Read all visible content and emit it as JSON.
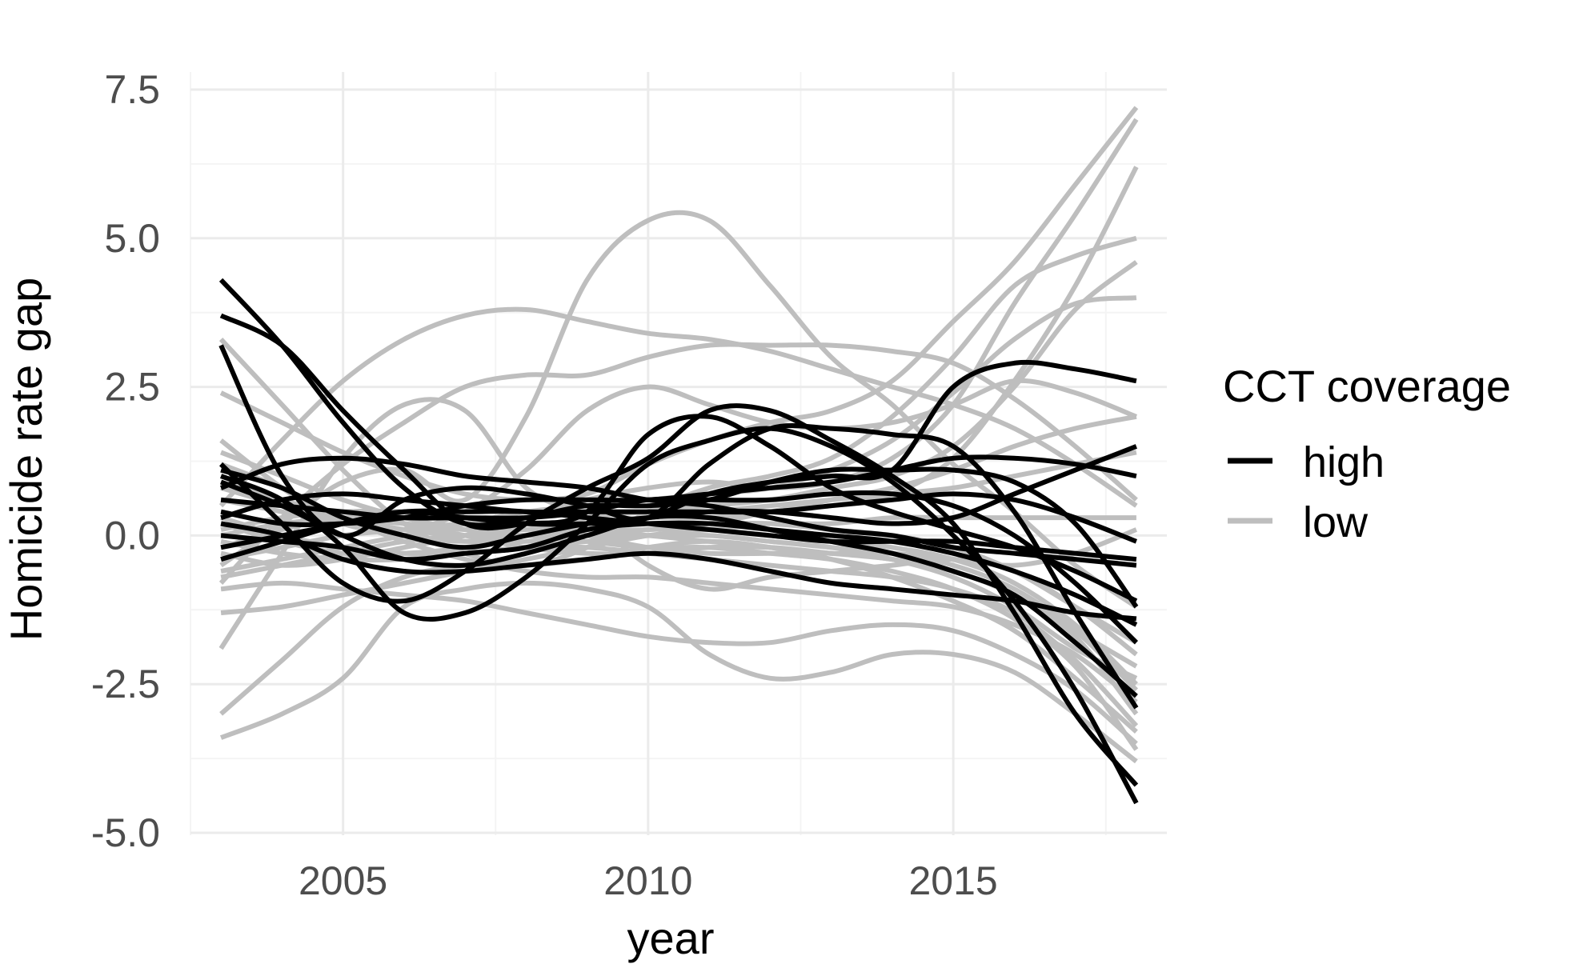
{
  "chart_data": {
    "type": "line",
    "xlabel": "year",
    "ylabel": "Homicide rate gap",
    "xlim": [
      2002.5,
      2018.5
    ],
    "ylim": [
      -5.0,
      7.8
    ],
    "x_ticks": [
      2005,
      2010,
      2015
    ],
    "x_tick_labels": [
      "2005",
      "2010",
      "2015"
    ],
    "y_ticks": [
      -5.0,
      -2.5,
      0.0,
      2.5,
      5.0,
      7.5
    ],
    "y_tick_labels": [
      "-5.0",
      "-2.5",
      "0.0",
      "2.5",
      "5.0",
      "7.5"
    ],
    "grid": true,
    "legend": {
      "title": "CCT coverage",
      "position": "right",
      "entries": [
        {
          "label": "high",
          "color": "#000000"
        },
        {
          "label": "low",
          "color": "#bebebe"
        }
      ]
    },
    "colors": {
      "high": "#000000",
      "low": "#bebebe",
      "grid_major": "#ebebeb",
      "grid_minor": "#f4f4f4",
      "text": "#4d4d4d"
    },
    "x": [
      2003,
      2004,
      2005,
      2006,
      2007,
      2008,
      2009,
      2010,
      2011,
      2012,
      2013,
      2014,
      2015,
      2016,
      2017,
      2018
    ],
    "series": [
      {
        "group": "low",
        "values": [
          -1.9,
          -0.3,
          1.3,
          2.2,
          2.1,
          0.8,
          0.3,
          -0.5,
          -0.9,
          -0.7,
          -0.6,
          -0.5,
          -0.4,
          -0.6,
          -1.2,
          -2.0
        ]
      },
      {
        "group": "low",
        "values": [
          -0.5,
          0.2,
          0.9,
          1.1,
          0.6,
          2.0,
          4.3,
          5.3,
          5.3,
          4.2,
          3.0,
          2.2,
          1.2,
          0.4,
          -0.5,
          -1.2
        ]
      },
      {
        "group": "low",
        "values": [
          0.5,
          1.6,
          2.6,
          3.3,
          3.7,
          3.8,
          3.6,
          3.4,
          3.3,
          3.1,
          2.8,
          2.5,
          2.2,
          1.8,
          1.2,
          0.5
        ]
      },
      {
        "group": "low",
        "values": [
          -0.8,
          0.3,
          1.2,
          1.9,
          2.5,
          2.7,
          2.7,
          3.0,
          3.2,
          3.2,
          3.2,
          3.1,
          2.9,
          2.3,
          1.5,
          0.6
        ]
      },
      {
        "group": "low",
        "values": [
          1.6,
          0.8,
          0.2,
          0.1,
          0.4,
          1.1,
          2.1,
          2.5,
          2.2,
          1.9,
          1.8,
          1.9,
          2.2,
          2.6,
          2.4,
          2.0
        ]
      },
      {
        "group": "low",
        "values": [
          2.4,
          1.9,
          1.4,
          1.0,
          0.7,
          0.6,
          0.7,
          1.2,
          1.6,
          1.9,
          2.1,
          2.6,
          3.6,
          4.6,
          5.9,
          7.2
        ]
      },
      {
        "group": "low",
        "values": [
          3.3,
          2.2,
          1.1,
          0.2,
          -0.3,
          -0.5,
          -0.2,
          0.4,
          0.8,
          1.0,
          1.3,
          2.0,
          3.0,
          4.2,
          4.7,
          5.0
        ]
      },
      {
        "group": "low",
        "values": [
          -0.3,
          -0.5,
          -0.4,
          -0.2,
          0.0,
          0.3,
          0.6,
          0.8,
          0.9,
          0.8,
          0.9,
          1.3,
          2.2,
          3.9,
          5.4,
          7.0
        ]
      },
      {
        "group": "low",
        "values": [
          0.8,
          0.5,
          0.2,
          0.0,
          -0.1,
          0.0,
          0.2,
          0.3,
          0.3,
          0.4,
          0.5,
          0.7,
          1.3,
          2.6,
          4.2,
          6.2
        ]
      },
      {
        "group": "low",
        "values": [
          0.2,
          -0.1,
          -0.3,
          -0.3,
          -0.2,
          0.0,
          0.3,
          0.4,
          0.5,
          0.6,
          0.8,
          1.0,
          1.5,
          2.5,
          3.8,
          4.6
        ]
      },
      {
        "group": "low",
        "values": [
          -0.6,
          -0.4,
          -0.2,
          0.0,
          0.2,
          0.4,
          0.5,
          0.6,
          0.7,
          0.8,
          1.1,
          1.6,
          2.4,
          3.3,
          3.9,
          4.0
        ]
      },
      {
        "group": "low",
        "values": [
          0.0,
          0.2,
          0.3,
          0.4,
          0.3,
          0.2,
          0.1,
          0.1,
          0.2,
          0.4,
          0.6,
          0.8,
          1.1,
          1.5,
          1.8,
          2.0
        ]
      },
      {
        "group": "low",
        "values": [
          0.9,
          0.6,
          0.3,
          0.2,
          0.1,
          0.1,
          0.2,
          0.3,
          0.4,
          0.5,
          0.6,
          0.7,
          0.8,
          1.0,
          1.2,
          1.4
        ]
      },
      {
        "group": "low",
        "values": [
          -1.3,
          -1.2,
          -1.0,
          -0.8,
          -0.6,
          -0.4,
          -0.2,
          0.0,
          0.1,
          0.2,
          0.2,
          0.3,
          0.3,
          0.3,
          0.3,
          0.3
        ]
      },
      {
        "group": "low",
        "values": [
          -3.0,
          -2.1,
          -1.2,
          -0.7,
          -0.5,
          -0.5,
          -0.4,
          -0.2,
          -0.1,
          -0.2,
          -0.4,
          -0.7,
          -1.1,
          -1.6,
          -2.4,
          -3.3
        ]
      },
      {
        "group": "low",
        "values": [
          -3.4,
          -3.0,
          -2.4,
          -1.2,
          -0.9,
          -0.8,
          -0.9,
          -1.2,
          -2.0,
          -2.4,
          -2.3,
          -2.0,
          -2.0,
          -2.3,
          -3.0,
          -3.8
        ]
      },
      {
        "group": "low",
        "values": [
          -0.9,
          -0.8,
          -0.9,
          -1.0,
          -1.1,
          -1.3,
          -1.5,
          -1.7,
          -1.8,
          -1.8,
          -1.6,
          -1.5,
          -1.6,
          -2.0,
          -2.6,
          -3.5
        ]
      },
      {
        "group": "low",
        "values": [
          1.2,
          0.8,
          0.3,
          -0.1,
          -0.4,
          -0.6,
          -0.7,
          -0.7,
          -0.8,
          -0.9,
          -1.0,
          -1.1,
          -1.2,
          -1.5,
          -2.0,
          -2.8
        ]
      },
      {
        "group": "low",
        "values": [
          0.3,
          0.0,
          -0.2,
          -0.3,
          -0.3,
          -0.2,
          -0.1,
          0.0,
          0.0,
          -0.1,
          -0.2,
          -0.3,
          -0.5,
          -0.9,
          -1.6,
          -2.6
        ]
      },
      {
        "group": "low",
        "values": [
          -0.2,
          0.1,
          0.3,
          0.2,
          0.0,
          -0.2,
          -0.3,
          -0.3,
          -0.2,
          -0.2,
          -0.3,
          -0.4,
          -0.6,
          -1.0,
          -1.7,
          -3.0
        ]
      },
      {
        "group": "low",
        "values": [
          0.6,
          0.4,
          0.2,
          0.0,
          -0.1,
          -0.1,
          0.0,
          0.0,
          0.0,
          -0.1,
          -0.2,
          -0.4,
          -0.7,
          -1.2,
          -1.9,
          -2.4
        ]
      },
      {
        "group": "low",
        "values": [
          -0.7,
          -0.5,
          -0.3,
          -0.1,
          0.0,
          0.0,
          -0.1,
          -0.2,
          -0.2,
          -0.3,
          -0.4,
          -0.6,
          -0.9,
          -1.4,
          -2.2,
          -3.6
        ]
      },
      {
        "group": "low",
        "values": [
          1.0,
          0.6,
          0.3,
          0.1,
          0.0,
          0.0,
          0.1,
          0.2,
          0.2,
          0.2,
          0.1,
          0.0,
          -0.2,
          -0.6,
          -1.2,
          -1.8
        ]
      },
      {
        "group": "low",
        "values": [
          0.1,
          0.3,
          0.4,
          0.4,
          0.3,
          0.2,
          0.0,
          -0.2,
          -0.3,
          -0.3,
          -0.3,
          -0.4,
          -0.6,
          -1.0,
          -1.6,
          -2.2
        ]
      },
      {
        "group": "low",
        "values": [
          -0.4,
          -0.2,
          0.0,
          0.1,
          0.2,
          0.2,
          0.1,
          0.0,
          -0.1,
          -0.2,
          -0.3,
          -0.3,
          -0.4,
          -0.5,
          -0.3,
          0.1
        ]
      },
      {
        "group": "low",
        "values": [
          1.4,
          1.0,
          0.6,
          0.3,
          0.1,
          0.0,
          0.0,
          0.1,
          0.1,
          0.0,
          -0.1,
          -0.2,
          -0.4,
          -0.8,
          -1.5,
          -2.5
        ]
      },
      {
        "group": "low",
        "values": [
          -0.1,
          -0.3,
          -0.4,
          -0.4,
          -0.3,
          -0.2,
          -0.2,
          -0.3,
          -0.4,
          -0.5,
          -0.6,
          -0.7,
          -0.9,
          -1.3,
          -2.1,
          -3.2
        ]
      },
      {
        "group": "high",
        "values": [
          4.3,
          3.2,
          1.9,
          0.8,
          0.2,
          0.3,
          0.5,
          0.5,
          0.6,
          0.9,
          1.1,
          1.1,
          1.1,
          0.9,
          0.2,
          -1.2
        ]
      },
      {
        "group": "high",
        "values": [
          3.7,
          3.2,
          2.1,
          1.1,
          0.2,
          0.2,
          0.4,
          1.7,
          2.0,
          1.5,
          0.8,
          0.4,
          0.1,
          -0.2,
          -0.6,
          -1.1
        ]
      },
      {
        "group": "high",
        "values": [
          3.2,
          1.0,
          0.0,
          0.6,
          0.8,
          0.7,
          0.5,
          0.3,
          1.2,
          1.8,
          1.8,
          1.7,
          1.5,
          0.4,
          -1.3,
          -2.9
        ]
      },
      {
        "group": "high",
        "values": [
          1.0,
          0.6,
          -0.2,
          -1.3,
          -1.3,
          -0.7,
          0.2,
          1.2,
          1.6,
          1.8,
          1.5,
          0.9,
          0.0,
          -1.1,
          -2.6,
          -4.5
        ]
      },
      {
        "group": "high",
        "values": [
          1.2,
          0.2,
          -0.8,
          -1.1,
          -0.6,
          0.2,
          0.8,
          1.3,
          2.1,
          2.1,
          1.6,
          1.0,
          0.2,
          -1.3,
          -3.0,
          -4.2
        ]
      },
      {
        "group": "high",
        "values": [
          -0.4,
          -0.1,
          0.2,
          0.4,
          0.3,
          0.2,
          0.2,
          0.3,
          0.7,
          0.9,
          1.0,
          1.1,
          2.5,
          2.9,
          2.8,
          2.6
        ]
      },
      {
        "group": "high",
        "values": [
          0.4,
          0.2,
          0.2,
          0.3,
          0.5,
          0.6,
          0.6,
          0.6,
          0.7,
          0.8,
          0.9,
          1.1,
          1.3,
          1.3,
          1.2,
          1.0
        ]
      },
      {
        "group": "high",
        "values": [
          1.1,
          0.8,
          0.3,
          0.0,
          -0.2,
          0.0,
          0.2,
          0.3,
          0.4,
          0.4,
          0.3,
          0.2,
          0.3,
          0.7,
          1.1,
          1.5
        ]
      },
      {
        "group": "high",
        "values": [
          0.8,
          1.2,
          1.3,
          1.2,
          1.0,
          0.9,
          0.8,
          0.6,
          0.5,
          0.3,
          0.1,
          0.0,
          -0.2,
          -0.3,
          -0.4,
          -0.5
        ]
      },
      {
        "group": "high",
        "values": [
          0.0,
          -0.1,
          -0.2,
          -0.4,
          -0.3,
          -0.2,
          0.1,
          0.2,
          0.2,
          0.1,
          0.0,
          -0.1,
          -0.3,
          -0.6,
          -1.0,
          -1.5
        ]
      },
      {
        "group": "high",
        "values": [
          0.2,
          0.0,
          -0.4,
          -0.6,
          -0.6,
          -0.5,
          -0.4,
          -0.3,
          -0.4,
          -0.6,
          -0.8,
          -0.9,
          -1.0,
          -1.1,
          -1.3,
          -1.4
        ]
      },
      {
        "group": "high",
        "values": [
          0.6,
          0.5,
          0.4,
          0.3,
          0.3,
          0.3,
          0.4,
          0.6,
          0.6,
          0.6,
          0.7,
          0.7,
          0.5,
          0.0,
          -0.8,
          -1.8
        ]
      },
      {
        "group": "high",
        "values": [
          -0.2,
          0.0,
          0.2,
          0.4,
          0.4,
          0.4,
          0.3,
          0.2,
          0.1,
          0.0,
          -0.1,
          -0.1,
          -0.1,
          -0.2,
          -0.3,
          -0.4
        ]
      },
      {
        "group": "high",
        "values": [
          0.9,
          0.5,
          0.0,
          -0.4,
          -0.5,
          -0.3,
          0.0,
          0.3,
          0.3,
          0.1,
          -0.1,
          -0.3,
          -0.6,
          -1.0,
          -1.8,
          -2.7
        ]
      },
      {
        "group": "high",
        "values": [
          0.3,
          0.6,
          0.7,
          0.6,
          0.5,
          0.4,
          0.4,
          0.4,
          0.4,
          0.4,
          0.5,
          0.6,
          0.7,
          0.6,
          0.3,
          -0.1
        ]
      }
    ]
  }
}
